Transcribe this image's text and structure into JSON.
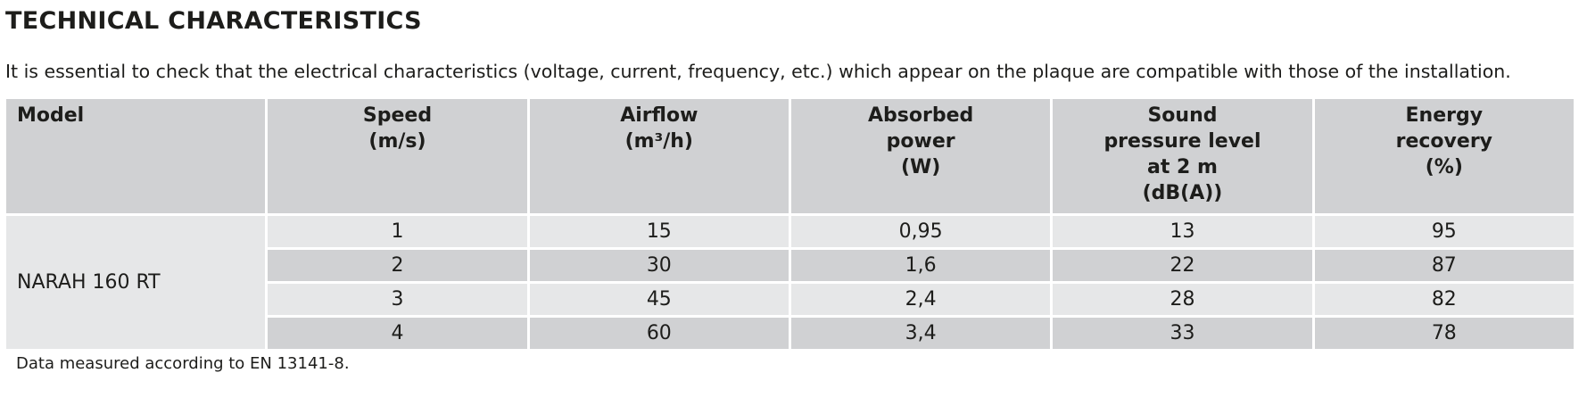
{
  "header": {
    "title": "TECHNICAL CHARACTERISTICS",
    "intro": "It is essential to check that the electrical characteristics (voltage, current, frequency, etc.) which appear on the plaque are compatible with those of the installation."
  },
  "table": {
    "columns": [
      [
        "Model"
      ],
      [
        "Speed",
        "(m/s)"
      ],
      [
        "Airflow",
        "(m³/h)"
      ],
      [
        "Absorbed",
        "power",
        "(W)"
      ],
      [
        "Sound",
        "pressure level",
        "at 2 m",
        "(dB(A))"
      ],
      [
        "Energy",
        "recovery",
        "(%)"
      ]
    ],
    "model": "NARAH 160 RT",
    "rows": [
      [
        1,
        15,
        "0,95",
        13,
        95
      ],
      [
        2,
        30,
        "1,6",
        22,
        87
      ],
      [
        3,
        45,
        "2,4",
        28,
        82
      ],
      [
        4,
        60,
        "3,4",
        33,
        78
      ]
    ]
  },
  "footnote": "Data measured according to EN 13141-8."
}
